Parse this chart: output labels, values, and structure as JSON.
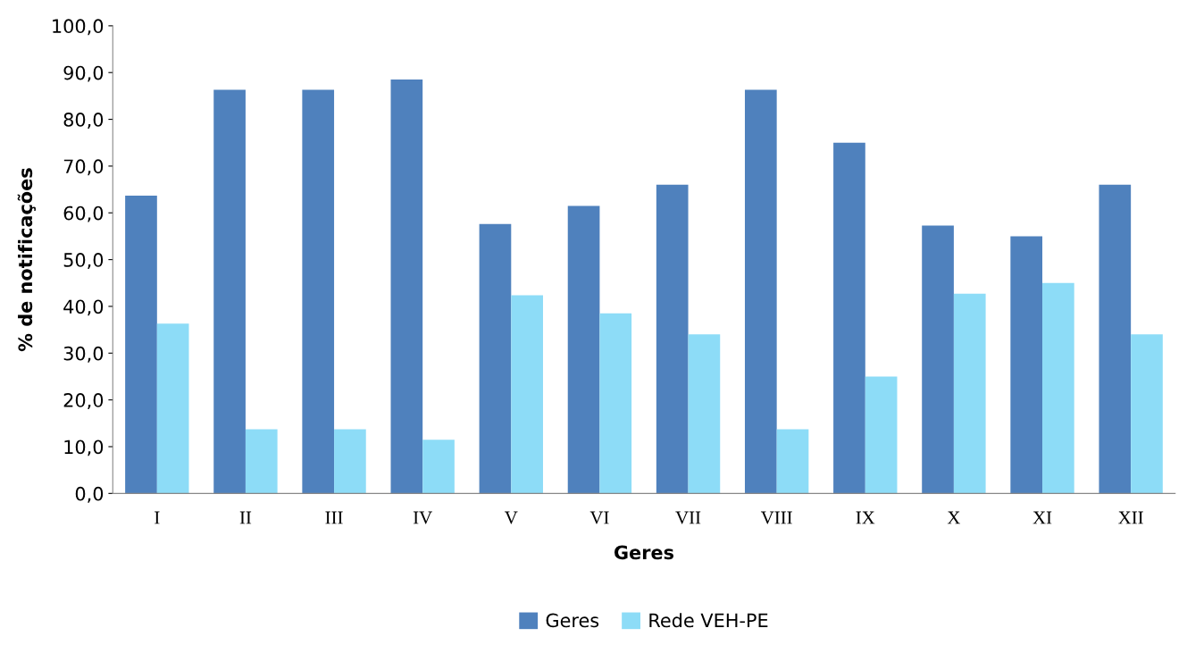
{
  "chart_data": {
    "type": "bar",
    "xlabel": "Geres",
    "ylabel": "% de notificações",
    "categories": [
      "I",
      "II",
      "III",
      "IV",
      "V",
      "VI",
      "VII",
      "VIII",
      "IX",
      "X",
      "XI",
      "XII"
    ],
    "series": [
      {
        "name": "Geres",
        "color": "#4f81bd",
        "values": [
          63.7,
          86.3,
          86.3,
          88.5,
          57.6,
          61.5,
          66.0,
          86.3,
          75.0,
          57.3,
          55.0,
          66.0
        ]
      },
      {
        "name": "Rede VEH-PE",
        "color": "#8ddcf7",
        "values": [
          36.3,
          13.7,
          13.7,
          11.5,
          42.4,
          38.5,
          34.0,
          13.7,
          25.0,
          42.7,
          45.0,
          34.0
        ]
      }
    ],
    "ylim": [
      0,
      100
    ],
    "yticks": [
      {
        "value": 0,
        "label": "0,0"
      },
      {
        "value": 10,
        "label": "10,0"
      },
      {
        "value": 20,
        "label": "20,0"
      },
      {
        "value": 30,
        "label": "30,0"
      },
      {
        "value": 40,
        "label": "40,0"
      },
      {
        "value": 50,
        "label": "50,0"
      },
      {
        "value": 60,
        "label": "60,0"
      },
      {
        "value": 70,
        "label": "70,0"
      },
      {
        "value": 80,
        "label": "80,0"
      },
      {
        "value": 90,
        "label": "90,0"
      },
      {
        "value": 100,
        "label": "100,0"
      }
    ],
    "grid": false,
    "legend": "bottom"
  }
}
